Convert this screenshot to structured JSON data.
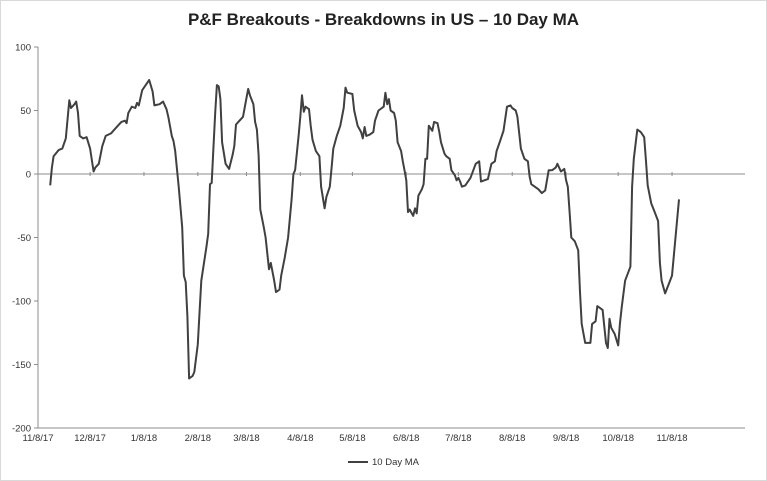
{
  "chart_data": {
    "type": "line",
    "title": "P&F Breakouts - Breakdowns in US – 10 Day MA",
    "xlabel": "",
    "ylabel": "",
    "ylim": [
      -200,
      100
    ],
    "yticks": [
      100,
      50,
      0,
      -50,
      -100,
      -150,
      -200
    ],
    "x_start": "11/8/17",
    "x_end": "12/20/18",
    "x_tick_labels": [
      "11/8/17",
      "12/8/17",
      "1/8/18",
      "2/8/18",
      "3/8/18",
      "4/8/18",
      "5/8/18",
      "6/8/18",
      "7/8/18",
      "8/8/18",
      "9/8/18",
      "10/8/18",
      "11/8/18"
    ],
    "grid": false,
    "legend_position": "bottom",
    "series": [
      {
        "name": "10 Day MA",
        "color": "#404040",
        "points": [
          [
            "11/15/17",
            -9
          ],
          [
            "11/16/17",
            5
          ],
          [
            "11/17/17",
            14
          ],
          [
            "11/20/17",
            19
          ],
          [
            "11/22/17",
            20
          ],
          [
            "11/24/17",
            28
          ],
          [
            "11/26/17",
            58
          ],
          [
            "11/27/17",
            52
          ],
          [
            "11/29/17",
            55
          ],
          [
            "11/30/17",
            57
          ],
          [
            "12/1/17",
            48
          ],
          [
            "12/2/17",
            30
          ],
          [
            "12/4/17",
            28
          ],
          [
            "12/6/17",
            29
          ],
          [
            "12/8/17",
            20
          ],
          [
            "12/10/17",
            2
          ],
          [
            "12/11/17",
            5
          ],
          [
            "12/13/17",
            8
          ],
          [
            "12/15/17",
            22
          ],
          [
            "12/17/17",
            30
          ],
          [
            "12/20/17",
            32
          ],
          [
            "12/22/17",
            35
          ],
          [
            "12/24/17",
            38
          ],
          [
            "12/26/17",
            41
          ],
          [
            "12/28/17",
            42
          ],
          [
            "12/29/17",
            40
          ],
          [
            "12/30/17",
            48
          ],
          [
            "1/1/18",
            53
          ],
          [
            "1/3/18",
            52
          ],
          [
            "1/4/18",
            56
          ],
          [
            "1/5/18",
            54
          ],
          [
            "1/7/18",
            66
          ],
          [
            "1/9/18",
            70
          ],
          [
            "1/11/18",
            74
          ],
          [
            "1/13/18",
            65
          ],
          [
            "1/14/18",
            54
          ],
          [
            "1/17/18",
            55
          ],
          [
            "1/19/18",
            57
          ],
          [
            "1/21/18",
            51
          ],
          [
            "1/22/18",
            45
          ],
          [
            "1/24/18",
            30
          ],
          [
            "1/25/18",
            26
          ],
          [
            "1/26/18",
            18
          ],
          [
            "1/28/18",
            -10
          ],
          [
            "1/30/18",
            -42
          ],
          [
            "1/31/18",
            -80
          ],
          [
            "2/1/18",
            -85
          ],
          [
            "2/2/18",
            -112
          ],
          [
            "2/3/18",
            -161
          ],
          [
            "2/5/18",
            -159
          ],
          [
            "2/6/18",
            -156
          ],
          [
            "2/8/18",
            -134
          ],
          [
            "2/9/18",
            -108
          ],
          [
            "2/10/18",
            -84
          ],
          [
            "2/13/18",
            -57
          ],
          [
            "2/14/18",
            -47
          ],
          [
            "2/15/18",
            -8
          ],
          [
            "2/16/18",
            -7
          ],
          [
            "2/17/18",
            20
          ],
          [
            "2/18/18",
            48
          ],
          [
            "2/19/18",
            70
          ],
          [
            "2/20/18",
            69
          ],
          [
            "2/21/18",
            59
          ],
          [
            "2/22/18",
            25
          ],
          [
            "2/24/18",
            8
          ],
          [
            "2/26/18",
            4
          ],
          [
            "2/28/18",
            15
          ],
          [
            "3/1/18",
            22
          ],
          [
            "3/2/18",
            39
          ],
          [
            "3/4/18",
            42
          ],
          [
            "3/6/18",
            45
          ],
          [
            "3/8/18",
            60
          ],
          [
            "3/9/18",
            67
          ],
          [
            "3/10/18",
            62
          ],
          [
            "3/12/18",
            55
          ],
          [
            "3/13/18",
            41
          ],
          [
            "3/14/18",
            35
          ],
          [
            "3/15/18",
            15
          ],
          [
            "3/16/18",
            -28
          ],
          [
            "3/18/18",
            -42
          ],
          [
            "3/19/18",
            -50
          ],
          [
            "3/21/18",
            -75
          ],
          [
            "3/22/18",
            -70
          ],
          [
            "3/23/18",
            -77
          ],
          [
            "3/24/18",
            -84
          ],
          [
            "3/25/18",
            -93
          ],
          [
            "3/27/18",
            -91
          ],
          [
            "3/28/18",
            -80
          ],
          [
            "3/30/18",
            -66
          ],
          [
            "4/1/18",
            -50
          ],
          [
            "4/3/18",
            -20
          ],
          [
            "4/4/18",
            0
          ],
          [
            "4/5/18",
            3
          ],
          [
            "4/7/18",
            30
          ],
          [
            "4/8/18",
            45
          ],
          [
            "4/9/18",
            62
          ],
          [
            "4/10/18",
            49
          ],
          [
            "4/11/18",
            53
          ],
          [
            "4/13/18",
            51
          ],
          [
            "4/14/18",
            38
          ],
          [
            "4/15/18",
            27
          ],
          [
            "4/17/18",
            18
          ],
          [
            "4/19/18",
            14
          ],
          [
            "4/20/18",
            -10
          ],
          [
            "4/22/18",
            -27
          ],
          [
            "4/23/18",
            -18
          ],
          [
            "4/25/18",
            -10
          ],
          [
            "4/26/18",
            5
          ],
          [
            "4/27/18",
            20
          ],
          [
            "4/29/18",
            30
          ],
          [
            "5/1/18",
            38
          ],
          [
            "5/3/18",
            52
          ],
          [
            "5/4/18",
            68
          ],
          [
            "5/5/18",
            64
          ],
          [
            "5/8/18",
            63
          ],
          [
            "5/9/18",
            50
          ],
          [
            "5/11/18",
            38
          ],
          [
            "5/13/18",
            33
          ],
          [
            "5/14/18",
            28
          ],
          [
            "5/15/18",
            37
          ],
          [
            "5/16/18",
            30
          ],
          [
            "5/18/18",
            31
          ],
          [
            "5/20/18",
            33
          ],
          [
            "5/21/18",
            42
          ],
          [
            "5/23/18",
            50
          ],
          [
            "5/26/18",
            53
          ],
          [
            "5/27/18",
            64
          ],
          [
            "5/28/18",
            55
          ],
          [
            "5/29/18",
            59
          ],
          [
            "5/30/18",
            50
          ],
          [
            "6/1/18",
            48
          ],
          [
            "6/2/18",
            42
          ],
          [
            "6/3/18",
            25
          ],
          [
            "6/5/18",
            18
          ],
          [
            "6/6/18",
            10
          ],
          [
            "6/7/18",
            3
          ],
          [
            "6/8/18",
            -5
          ],
          [
            "6/9/18",
            -30
          ],
          [
            "6/10/18",
            -28
          ],
          [
            "6/12/18",
            -33
          ],
          [
            "6/13/18",
            -27
          ],
          [
            "6/14/18",
            -31
          ],
          [
            "6/15/18",
            -17
          ],
          [
            "6/17/18",
            -12
          ],
          [
            "6/18/18",
            -8
          ],
          [
            "6/19/18",
            12
          ],
          [
            "6/20/18",
            12
          ],
          [
            "6/21/18",
            38
          ],
          [
            "6/22/18",
            36
          ],
          [
            "6/23/18",
            34
          ],
          [
            "6/24/18",
            41
          ],
          [
            "6/26/18",
            40
          ],
          [
            "6/27/18",
            33
          ],
          [
            "6/28/18",
            25
          ],
          [
            "6/30/18",
            16
          ],
          [
            "7/1/18",
            14
          ],
          [
            "7/3/18",
            12
          ],
          [
            "7/4/18",
            3
          ],
          [
            "7/6/18",
            -1
          ],
          [
            "7/7/18",
            -5
          ],
          [
            "7/8/18",
            -3
          ],
          [
            "7/9/18",
            -6
          ],
          [
            "7/10/18",
            -10
          ],
          [
            "7/12/18",
            -9
          ],
          [
            "7/15/18",
            -3
          ],
          [
            "7/18/18",
            8
          ],
          [
            "7/20/18",
            10
          ],
          [
            "7/21/18",
            -6
          ],
          [
            "7/23/18",
            -5
          ],
          [
            "7/25/18",
            -4
          ],
          [
            "7/27/18",
            8
          ],
          [
            "7/29/18",
            10
          ],
          [
            "7/30/18",
            18
          ],
          [
            "8/1/18",
            26
          ],
          [
            "8/3/18",
            34
          ],
          [
            "8/5/18",
            53
          ],
          [
            "8/7/18",
            54
          ],
          [
            "8/8/18",
            52
          ],
          [
            "8/10/18",
            50
          ],
          [
            "8/11/18",
            45
          ],
          [
            "8/13/18",
            20
          ],
          [
            "8/15/18",
            12
          ],
          [
            "8/17/18",
            10
          ],
          [
            "8/18/18",
            -2
          ],
          [
            "8/19/18",
            -8
          ],
          [
            "8/21/18",
            -10
          ],
          [
            "8/23/18",
            -12
          ],
          [
            "8/25/18",
            -15
          ],
          [
            "8/27/18",
            -13
          ],
          [
            "8/29/18",
            3
          ],
          [
            "8/31/18",
            3
          ],
          [
            "9/2/18",
            5
          ],
          [
            "9/3/18",
            8
          ],
          [
            "9/5/18",
            2
          ],
          [
            "9/7/18",
            4
          ],
          [
            "9/8/18",
            -5
          ],
          [
            "9/9/18",
            -10
          ],
          [
            "9/10/18",
            -30
          ],
          [
            "9/11/18",
            -50
          ],
          [
            "9/13/18",
            -53
          ],
          [
            "9/15/18",
            -60
          ],
          [
            "9/16/18",
            -93
          ],
          [
            "9/17/18",
            -118
          ],
          [
            "9/19/18",
            -133
          ],
          [
            "9/22/18",
            -133
          ],
          [
            "9/23/18",
            -118
          ],
          [
            "9/25/18",
            -116
          ],
          [
            "9/26/18",
            -104
          ],
          [
            "9/29/18",
            -107
          ],
          [
            "10/1/18",
            -133
          ],
          [
            "10/2/18",
            -137
          ],
          [
            "10/3/18",
            -114
          ],
          [
            "10/4/18",
            -121
          ],
          [
            "10/6/18",
            -126
          ],
          [
            "10/8/18",
            -135
          ],
          [
            "10/9/18",
            -118
          ],
          [
            "10/10/18",
            -105
          ],
          [
            "10/12/18",
            -84
          ],
          [
            "10/15/18",
            -73
          ],
          [
            "10/16/18",
            -10
          ],
          [
            "10/17/18",
            12
          ],
          [
            "10/19/18",
            35
          ],
          [
            "10/21/18",
            33
          ],
          [
            "10/23/18",
            29
          ],
          [
            "10/24/18",
            10
          ],
          [
            "10/25/18",
            -9
          ],
          [
            "10/27/18",
            -23
          ],
          [
            "10/29/18",
            -30
          ],
          [
            "10/31/18",
            -37
          ],
          [
            "11/1/18",
            -70
          ],
          [
            "11/2/18",
            -84
          ],
          [
            "11/4/18",
            -94
          ],
          [
            "11/6/18",
            -87
          ],
          [
            "11/8/18",
            -80
          ],
          [
            "11/10/18",
            -50
          ],
          [
            "11/12/18",
            -20
          ]
        ]
      }
    ]
  }
}
